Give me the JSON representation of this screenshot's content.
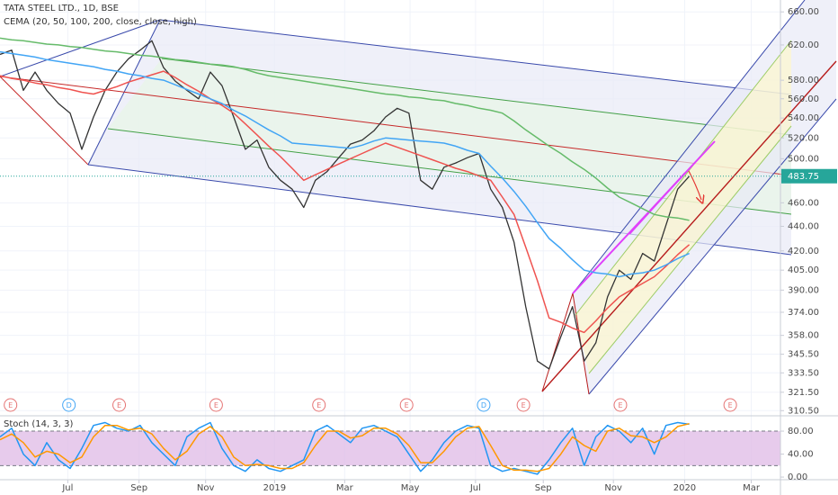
{
  "chart_data": [
    {
      "type": "line",
      "title": "TATA STEEL LTD., 1D, BSE",
      "subtitle": "CEMA (20, 50, 100, 200, close, close, high)",
      "log_scale": true,
      "grid": true,
      "xlim": [
        0,
        66.8
      ],
      "xticks": [
        {
          "value": 5.8,
          "label": "Jul"
        },
        {
          "value": 11.9,
          "label": "Sep"
        },
        {
          "value": 17.6,
          "label": "Nov"
        },
        {
          "value": 23.5,
          "label": "2019"
        },
        {
          "value": 29.5,
          "label": "Mar"
        },
        {
          "value": 35.1,
          "label": "May"
        },
        {
          "value": 40.7,
          "label": "Jul"
        },
        {
          "value": 46.5,
          "label": "Sep"
        },
        {
          "value": 52.5,
          "label": "Nov"
        },
        {
          "value": 58.6,
          "label": "2020"
        },
        {
          "value": 64.3,
          "label": "Mar"
        }
      ],
      "ylim": [
        307.5,
        675
      ],
      "yticks": [
        {
          "value": 660,
          "label": "660.00"
        },
        {
          "value": 620,
          "label": "620.00"
        },
        {
          "value": 580,
          "label": "580.00"
        },
        {
          "value": 560,
          "label": "560.00"
        },
        {
          "value": 540,
          "label": "540.00"
        },
        {
          "value": 520,
          "label": "520.00"
        },
        {
          "value": 500,
          "label": "500.00"
        },
        {
          "value": 460,
          "label": "460.00"
        },
        {
          "value": 440,
          "label": "440.00"
        },
        {
          "value": 420,
          "label": "420.00"
        },
        {
          "value": 405,
          "label": "405.00"
        },
        {
          "value": 390,
          "label": "390.00"
        },
        {
          "value": 374,
          "label": "374.00"
        },
        {
          "value": 358,
          "label": "358.00"
        },
        {
          "value": 345.5,
          "label": "345.50"
        },
        {
          "value": 333.5,
          "label": "333.50"
        },
        {
          "value": 321.5,
          "label": "321.50"
        },
        {
          "value": 310.5,
          "label": "310.50"
        }
      ],
      "last_price_label": "483.75",
      "last_price_color": "#26a69a",
      "series": [
        {
          "color": "#333333",
          "values": [
            609,
            614,
            569,
            589,
            569,
            555,
            545,
            509,
            541,
            569,
            589,
            604,
            614,
            625,
            594,
            579,
            569,
            560,
            589,
            574,
            541,
            509,
            518,
            492,
            480,
            472,
            456,
            480,
            488,
            501,
            514,
            518,
            527,
            541,
            550,
            545,
            480,
            472,
            492,
            496,
            501,
            505,
            472,
            456,
            427,
            378,
            341,
            336,
            357,
            378,
            341,
            353,
            385,
            405,
            398,
            418,
            412,
            441,
            472,
            483.75
          ]
        },
        {
          "color": "#ef5350",
          "values": [
            585,
            582,
            580,
            577,
            575,
            572,
            570,
            567,
            565,
            569,
            573,
            578,
            582,
            586,
            590,
            583,
            575,
            568,
            560,
            553,
            545,
            534,
            523,
            512,
            502,
            491,
            480,
            485,
            490,
            495,
            500,
            505,
            510,
            515,
            511,
            507,
            503,
            499,
            495,
            491,
            488,
            484,
            480,
            465,
            450,
            423,
            397,
            370,
            367,
            363,
            360,
            368,
            377,
            385,
            390,
            395,
            400,
            408,
            417,
            425
          ]
        },
        {
          "color": "#42a5f5",
          "values": [
            612,
            610,
            608,
            606,
            603,
            601,
            599,
            597,
            595,
            592,
            590,
            587,
            585,
            582,
            580,
            575,
            570,
            565,
            560,
            555,
            548,
            542,
            535,
            528,
            522,
            515,
            514,
            513,
            512,
            511,
            510,
            513,
            517,
            520,
            519,
            518,
            517,
            516,
            515,
            512,
            508,
            505,
            493,
            482,
            470,
            457,
            443,
            430,
            422,
            413,
            405,
            403,
            402,
            400,
            402,
            403,
            405,
            409,
            414,
            418
          ]
        },
        {
          "color": "#66bb6a",
          "values": [
            628,
            626,
            625,
            623,
            621,
            620,
            618,
            617,
            615,
            613,
            612,
            610,
            608,
            607,
            605,
            603,
            602,
            600,
            598,
            597,
            595,
            592,
            588,
            585,
            583,
            581,
            579,
            577,
            575,
            573,
            571,
            569,
            567,
            565,
            564,
            562,
            561,
            559,
            558,
            555,
            553,
            550,
            548,
            545,
            537,
            528,
            520,
            512,
            505,
            497,
            490,
            482,
            473,
            465,
            460,
            455,
            450,
            448,
            447,
            445
          ]
        }
      ],
      "events": [
        {
          "label": "E",
          "x": 0.9,
          "color": "#e57373"
        },
        {
          "label": "D",
          "x": 5.9,
          "color": "#42a5f5"
        },
        {
          "label": "E",
          "x": 10.2,
          "color": "#e57373"
        },
        {
          "label": "E",
          "x": 18.5,
          "color": "#e57373"
        },
        {
          "label": "E",
          "x": 27.3,
          "color": "#e57373"
        },
        {
          "label": "E",
          "x": 34.8,
          "color": "#e57373"
        },
        {
          "label": "D",
          "x": 41.4,
          "color": "#42a5f5"
        },
        {
          "label": "E",
          "x": 44.8,
          "color": "#e57373"
        },
        {
          "label": "E",
          "x": 53.1,
          "color": "#e57373"
        },
        {
          "label": "E",
          "x": 62.5,
          "color": "#e57373"
        }
      ]
    },
    {
      "type": "line",
      "title": "Stoch (14, 3, 3)",
      "ylim": [
        -3,
        102
      ],
      "yticks": [
        {
          "value": 80,
          "label": "80.00"
        },
        {
          "value": 40,
          "label": "40.00"
        },
        {
          "value": 0,
          "label": "0.00"
        }
      ],
      "bands": [
        20,
        80
      ],
      "band_color": "#e1bee7",
      "series": [
        {
          "color": "#2196f3",
          "values": [
            70,
            85,
            40,
            20,
            60,
            30,
            15,
            50,
            90,
            95,
            85,
            80,
            90,
            60,
            40,
            20,
            70,
            85,
            95,
            50,
            20,
            10,
            30,
            15,
            10,
            20,
            30,
            80,
            90,
            75,
            60,
            85,
            90,
            80,
            70,
            40,
            10,
            30,
            60,
            80,
            90,
            85,
            20,
            10,
            15,
            10,
            5,
            30,
            60,
            85,
            20,
            70,
            90,
            80,
            60,
            85,
            40,
            90,
            95,
            92
          ]
        },
        {
          "color": "#ff9800",
          "values": [
            65,
            75,
            60,
            35,
            45,
            40,
            25,
            35,
            70,
            90,
            90,
            82,
            85,
            75,
            50,
            30,
            45,
            75,
            88,
            70,
            35,
            20,
            22,
            20,
            15,
            15,
            25,
            55,
            80,
            80,
            68,
            72,
            85,
            85,
            75,
            55,
            25,
            25,
            45,
            70,
            85,
            88,
            55,
            20,
            12,
            12,
            10,
            15,
            40,
            70,
            55,
            45,
            80,
            85,
            72,
            70,
            60,
            70,
            88,
            93
          ]
        }
      ]
    }
  ]
}
